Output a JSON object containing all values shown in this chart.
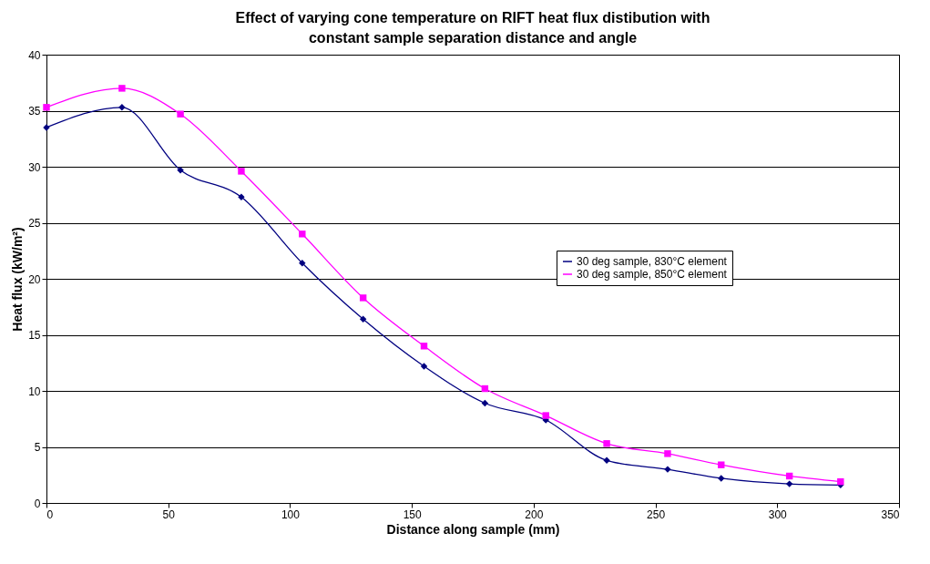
{
  "chart_data": {
    "type": "line",
    "title": "Effect of varying cone temperature on RIFT heat flux distibution with constant sample separation distance and angle",
    "xlabel": "Distance along sample (mm)",
    "ylabel": "Heat flux (kW/m²)",
    "x": [
      0,
      31,
      55,
      80,
      105,
      130,
      155,
      180,
      205,
      230,
      255,
      277,
      305,
      326
    ],
    "series": [
      {
        "name": "30 deg sample, 830°C element",
        "color": "#000080",
        "marker": "diamond",
        "values": [
          33.5,
          35.3,
          29.7,
          27.3,
          21.4,
          16.4,
          12.2,
          8.9,
          7.4,
          3.8,
          3.0,
          2.2,
          1.7,
          1.6
        ]
      },
      {
        "name": "30 deg sample, 850°C element",
        "color": "#ff00ff",
        "marker": "square",
        "values": [
          35.3,
          37.0,
          34.7,
          29.6,
          24.0,
          18.3,
          14.0,
          10.2,
          7.8,
          5.3,
          4.4,
          3.4,
          2.4,
          1.9
        ]
      }
    ],
    "xlim": [
      0,
      350
    ],
    "xticks": [
      0,
      50,
      100,
      150,
      200,
      250,
      300,
      350
    ],
    "ylim": [
      0,
      40
    ],
    "yticks": [
      0,
      5,
      10,
      15,
      20,
      25,
      30,
      35,
      40
    ],
    "grid": "y",
    "legend": "right",
    "line_style": "solid"
  }
}
